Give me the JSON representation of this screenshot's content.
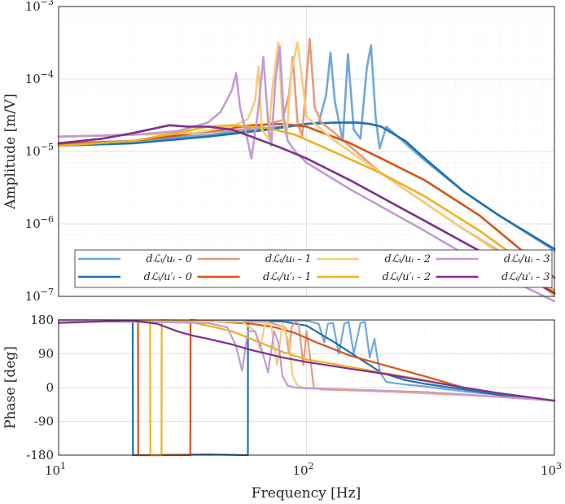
{
  "chart_data": [
    {
      "type": "line",
      "panel": "amplitude",
      "ylabel": "Amplitude [m/V]",
      "xlabel": "",
      "xscale": "log",
      "yscale": "log",
      "xlim": [
        10,
        1000
      ],
      "ylim": [
        1e-07,
        0.001
      ],
      "grid": true,
      "legend_placement": "bottom",
      "y_tick_labels": [
        "10^-7",
        "10^-6",
        "10^-5",
        "10^-4",
        "10^-3"
      ],
      "series": [
        {
          "name": "dL_i/u_i - 0",
          "legend_label": "dℒᵢ/uᵢ - 0",
          "color": "#6fa8dc",
          "width": 2.6,
          "x": [
            10,
            20,
            40,
            70,
            100,
            112,
            120,
            125,
            130,
            140,
            147,
            155,
            165,
            175,
            182,
            190,
            197,
            210,
            250,
            300,
            430,
            600,
            1000
          ],
          "y": [
            1.3e-05,
            1.4e-05,
            1.7e-05,
            2.1e-05,
            2.4e-05,
            2.5e-05,
            6e-05,
            0.00023,
            5e-05,
            1.4e-05,
            0.00022,
            2e-05,
            1.5e-05,
            0.00014,
            0.00029,
            3e-05,
            1.1e-05,
            2.2e-05,
            1.3e-05,
            7.5e-06,
            2.8e-06,
            1.3e-06,
            4.3e-07
          ]
        },
        {
          "name": "dL_i/u'_i - 0",
          "legend_label": "dℒᵢ/u′ᵢ - 0",
          "color": "#1f6fb4",
          "width": 2.6,
          "x": [
            10,
            20,
            40,
            70,
            100,
            130,
            160,
            180,
            200,
            250,
            300,
            430,
            600,
            1000
          ],
          "y": [
            1.2e-05,
            1.3e-05,
            1.6e-05,
            2e-05,
            2.4e-05,
            2.5e-05,
            2.5e-05,
            2.4e-05,
            2.2e-05,
            1.4e-05,
            8e-06,
            2.8e-06,
            1.3e-06,
            4.5e-07
          ]
        },
        {
          "name": "dL_i/u_i - 1",
          "legend_label": "dℒᵢ/uᵢ - 1",
          "color": "#e79a7c",
          "width": 2.6,
          "x": [
            10,
            20,
            35,
            55,
            70,
            80,
            85,
            88,
            92,
            96,
            100,
            103,
            108,
            115,
            130,
            200,
            400,
            700,
            1000
          ],
          "y": [
            1.6e-05,
            1.7e-05,
            1.8e-05,
            2e-05,
            2.4e-05,
            2.7e-05,
            6e-05,
            0.0002,
            2.5e-05,
            1.6e-05,
            0.0001,
            0.00036,
            4e-05,
            2.5e-05,
            1.8e-05,
            5e-06,
            1e-06,
            3e-07,
            1.1e-07
          ]
        },
        {
          "name": "dL_i/u'_i - 1",
          "legend_label": "dℒᵢ/u′ᵢ - 1",
          "color": "#d95319",
          "width": 2.6,
          "x": [
            10,
            20,
            30,
            45,
            60,
            80,
            100,
            150,
            200,
            300,
            500,
            700,
            1000
          ],
          "y": [
            1.25e-05,
            1.4e-05,
            1.65e-05,
            2e-05,
            2.3e-05,
            2.4e-05,
            2.2e-05,
            1.3e-05,
            8e-06,
            4e-06,
            1.3e-06,
            5e-07,
            1.8e-07
          ]
        },
        {
          "name": "dL_i/u_i - 2",
          "legend_label": "dℒᵢ/uᵢ - 2",
          "color": "#f5cd79",
          "width": 2.6,
          "x": [
            10,
            20,
            35,
            50,
            58,
            62,
            64,
            66,
            70,
            73,
            77,
            80,
            83,
            87,
            92,
            100,
            130,
            200,
            400,
            700,
            1000
          ],
          "y": [
            1.6e-05,
            1.7e-05,
            1.8e-05,
            2.2e-05,
            2.8e-05,
            5e-05,
            0.00015,
            2e-05,
            1.5e-05,
            8e-05,
            0.00032,
            3e-05,
            1.6e-05,
            0.00013,
            0.00032,
            3e-05,
            1.4e-05,
            5e-06,
            1e-06,
            2.8e-07,
            1e-07
          ]
        },
        {
          "name": "dL_i/u'_i - 2",
          "legend_label": "dℒᵢ/u′ᵢ - 2",
          "color": "#edb120",
          "width": 2.6,
          "x": [
            10,
            20,
            30,
            40,
            50,
            70,
            90,
            120,
            200,
            300,
            500,
            700,
            1000
          ],
          "y": [
            1.2e-05,
            1.4e-05,
            1.8e-05,
            2.2e-05,
            2.3e-05,
            2.1e-05,
            1.7e-05,
            1.1e-05,
            5e-06,
            2.4e-06,
            8e-07,
            3.5e-07,
            1.2e-07
          ]
        },
        {
          "name": "dL_i/u_i - 3",
          "legend_label": "dℒᵢ/uᵢ - 3",
          "color": "#c39bd3",
          "width": 2.6,
          "x": [
            10,
            20,
            30,
            40,
            45,
            50,
            52,
            54,
            57,
            60,
            64,
            67,
            70,
            72,
            75,
            78,
            81,
            84,
            90,
            100,
            150,
            300,
            600,
            1000
          ],
          "y": [
            1.6e-05,
            1.7e-05,
            1.9e-05,
            2.5e-05,
            3.5e-05,
            7e-05,
            0.00012,
            4e-05,
            1.8e-05,
            8e-06,
            4e-05,
            0.0002,
            2.6e-05,
            1.2e-05,
            0.0001,
            0.00028,
            3e-05,
            1.4e-05,
            1e-05,
            7e-06,
            3e-06,
            8e-07,
            2e-07,
            7e-08
          ]
        },
        {
          "name": "dL_i/u'_i - 3",
          "legend_label": "dℒᵢ/u′ᵢ - 3",
          "color": "#7e2f8e",
          "width": 2.6,
          "x": [
            10,
            15,
            20,
            28,
            33,
            40,
            50,
            60,
            80,
            100,
            150,
            300,
            600,
            1000
          ],
          "y": [
            1.3e-05,
            1.5e-05,
            1.8e-05,
            2.3e-05,
            2.2e-05,
            2.2e-05,
            2e-05,
            1.6e-05,
            1.1e-05,
            8e-06,
            4e-06,
            1.1e-06,
            3e-07,
            1.1e-07
          ]
        }
      ]
    },
    {
      "type": "line",
      "panel": "phase",
      "ylabel": "Phase [deg]",
      "xlabel": "Frequency [Hz]",
      "xscale": "log",
      "xlim": [
        10,
        1000
      ],
      "ylim": [
        -180,
        180
      ],
      "yticks": [
        -180,
        -90,
        0,
        90,
        180
      ],
      "xtick_labels": [
        "10^1",
        "10^2",
        "10^3"
      ],
      "grid": true,
      "series": [
        {
          "name": "dL_i/u_i - 0",
          "color": "#6fa8dc",
          "width": 2.2,
          "x": [
            10,
            100,
            112,
            118,
            122,
            128,
            135,
            142,
            148,
            155,
            165,
            172,
            180,
            188,
            193,
            198,
            210,
            250,
            300,
            430,
            600,
            1000
          ],
          "y": [
            180,
            178,
            170,
            120,
            170,
            172,
            90,
            170,
            175,
            90,
            172,
            175,
            80,
            130,
            80,
            40,
            15,
            8,
            3,
            -10,
            -20,
            -35
          ]
        },
        {
          "name": "dL_i/u'_i - 0",
          "color": "#1f6fb4",
          "width": 2.2,
          "x": [
            10,
            19.9,
            19.95,
            25,
            40,
            58,
            58.05,
            80,
            100,
            130,
            170,
            200,
            250,
            300,
            430,
            600,
            1000
          ],
          "y": [
            178,
            178,
            -180,
            -180,
            -178,
            -180,
            178,
            176,
            165,
            120,
            70,
            40,
            20,
            10,
            -5,
            -20,
            -35
          ]
        },
        {
          "name": "dL_i/u_i - 1",
          "color": "#e79a7c",
          "width": 2.2,
          "x": [
            10,
            70,
            82,
            85,
            87,
            90,
            93,
            97,
            100,
            103,
            107,
            115,
            200,
            430,
            600,
            1000
          ],
          "y": [
            178,
            175,
            160,
            90,
            160,
            175,
            170,
            60,
            150,
            90,
            0,
            -5,
            -10,
            -20,
            -25,
            -35
          ]
        },
        {
          "name": "dL_i/u'_i - 1",
          "color": "#d95319",
          "width": 2.2,
          "x": [
            10,
            20.9,
            20.95,
            28,
            34,
            34.05,
            45,
            60,
            75,
            90,
            110,
            150,
            200,
            300,
            430,
            600,
            1000
          ],
          "y": [
            178,
            178,
            -180,
            -180,
            -180,
            180,
            175,
            170,
            160,
            145,
            120,
            85,
            62,
            30,
            0,
            -15,
            -35
          ]
        },
        {
          "name": "dL_i/u_i - 2",
          "color": "#f5cd79",
          "width": 2.2,
          "x": [
            10,
            55,
            62,
            65,
            68,
            72,
            76,
            80,
            85,
            88,
            92,
            97,
            120,
            200,
            430,
            600,
            1000
          ],
          "y": [
            178,
            175,
            150,
            100,
            170,
            165,
            60,
            170,
            120,
            30,
            5,
            0,
            -3,
            -8,
            -18,
            -25,
            -35
          ]
        },
        {
          "name": "dL_i/u'_i - 2",
          "color": "#edb120",
          "width": 2.2,
          "x": [
            10,
            23.4,
            23.45,
            26,
            26.05,
            32,
            40,
            50,
            65,
            80,
            100,
            150,
            200,
            300,
            430,
            600,
            1000
          ],
          "y": [
            178,
            178,
            -180,
            -180,
            180,
            178,
            165,
            150,
            120,
            95,
            75,
            55,
            40,
            20,
            0,
            -15,
            -35
          ]
        },
        {
          "name": "dL_i/u_i - 3",
          "color": "#c39bd3",
          "width": 2.2,
          "x": [
            10,
            40,
            48,
            52,
            55,
            58,
            62,
            66,
            70,
            74,
            77,
            80,
            84,
            90,
            100,
            150,
            300,
            430,
            600,
            1000
          ],
          "y": [
            178,
            172,
            160,
            110,
            45,
            150,
            150,
            100,
            40,
            150,
            120,
            30,
            5,
            0,
            -2,
            -5,
            -12,
            -18,
            -25,
            -35
          ]
        },
        {
          "name": "dL_i/u'_i - 3",
          "color": "#7e2f8e",
          "width": 2.2,
          "x": [
            10,
            15,
            20,
            25,
            30,
            35,
            40,
            50,
            60,
            80,
            100,
            150,
            200,
            300,
            430,
            600,
            1000
          ],
          "y": [
            172,
            176,
            178,
            170,
            150,
            138,
            130,
            115,
            100,
            80,
            68,
            50,
            38,
            18,
            0,
            -15,
            -35
          ]
        }
      ]
    }
  ]
}
